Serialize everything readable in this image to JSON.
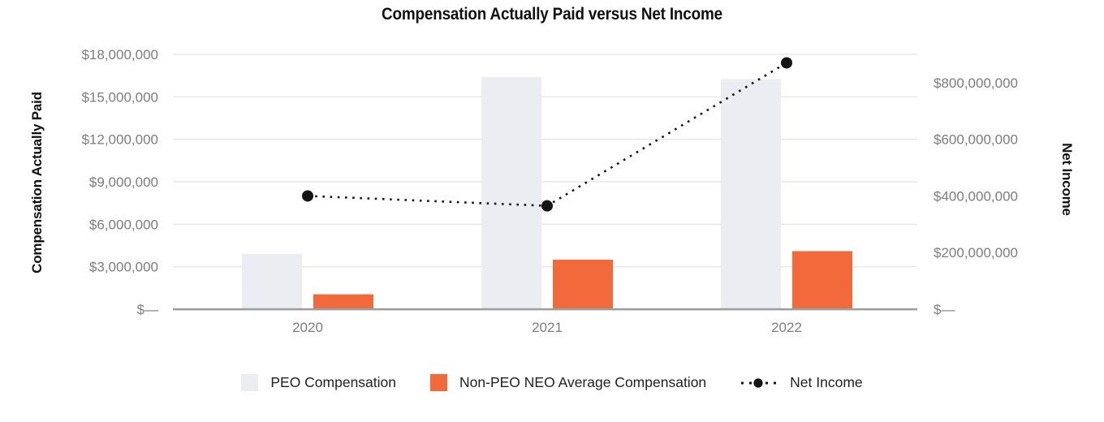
{
  "title": "Compensation Actually Paid versus Net Income",
  "chart_data": {
    "type": "bar",
    "subtype": "combo-bar-line-dual-axis",
    "categories": [
      "2020",
      "2021",
      "2022"
    ],
    "series": [
      {
        "name": "PEO Compensation",
        "type": "bar",
        "axis": "left",
        "color": "#ECEDF2",
        "values": [
          3900000,
          16400000,
          16250000
        ]
      },
      {
        "name": "Non-PEO NEO Average Compensation",
        "type": "bar",
        "axis": "left",
        "color": "#F2693C",
        "values": [
          1050000,
          3500000,
          4100000
        ]
      },
      {
        "name": "Net Income",
        "type": "line",
        "axis": "right",
        "color": "#141414",
        "line_style": "dotted",
        "marker": "filled-circle",
        "values": [
          400000000,
          365000000,
          870000000
        ]
      }
    ],
    "title": "Compensation Actually Paid versus Net Income",
    "left_axis": {
      "label": "Compensation Actually Paid",
      "ylim": [
        0,
        18000000
      ],
      "tick_values": [
        0,
        3000000,
        6000000,
        9000000,
        12000000,
        15000000,
        18000000
      ],
      "ticks": [
        "$—",
        "$3,000,000",
        "$6,000,000",
        "$9,000,000",
        "$12,000,000",
        "$15,000,000",
        "$18,000,000"
      ]
    },
    "right_axis": {
      "label": "Net Income",
      "ylim": [
        0,
        900000000
      ],
      "tick_values": [
        0,
        200000000,
        400000000,
        600000000,
        800000000
      ],
      "ticks": [
        "$—",
        "$200,000,000",
        "$400,000,000",
        "$600,000,000",
        "$800,000,000"
      ]
    },
    "grid": true,
    "legend_position": "bottom",
    "colors": {
      "gridline": "#E8E8E8",
      "axis_line": "#9E9E9E",
      "tick_text": "#7d7d7d",
      "title_text": "#111111",
      "legend_text": "#222222"
    }
  }
}
